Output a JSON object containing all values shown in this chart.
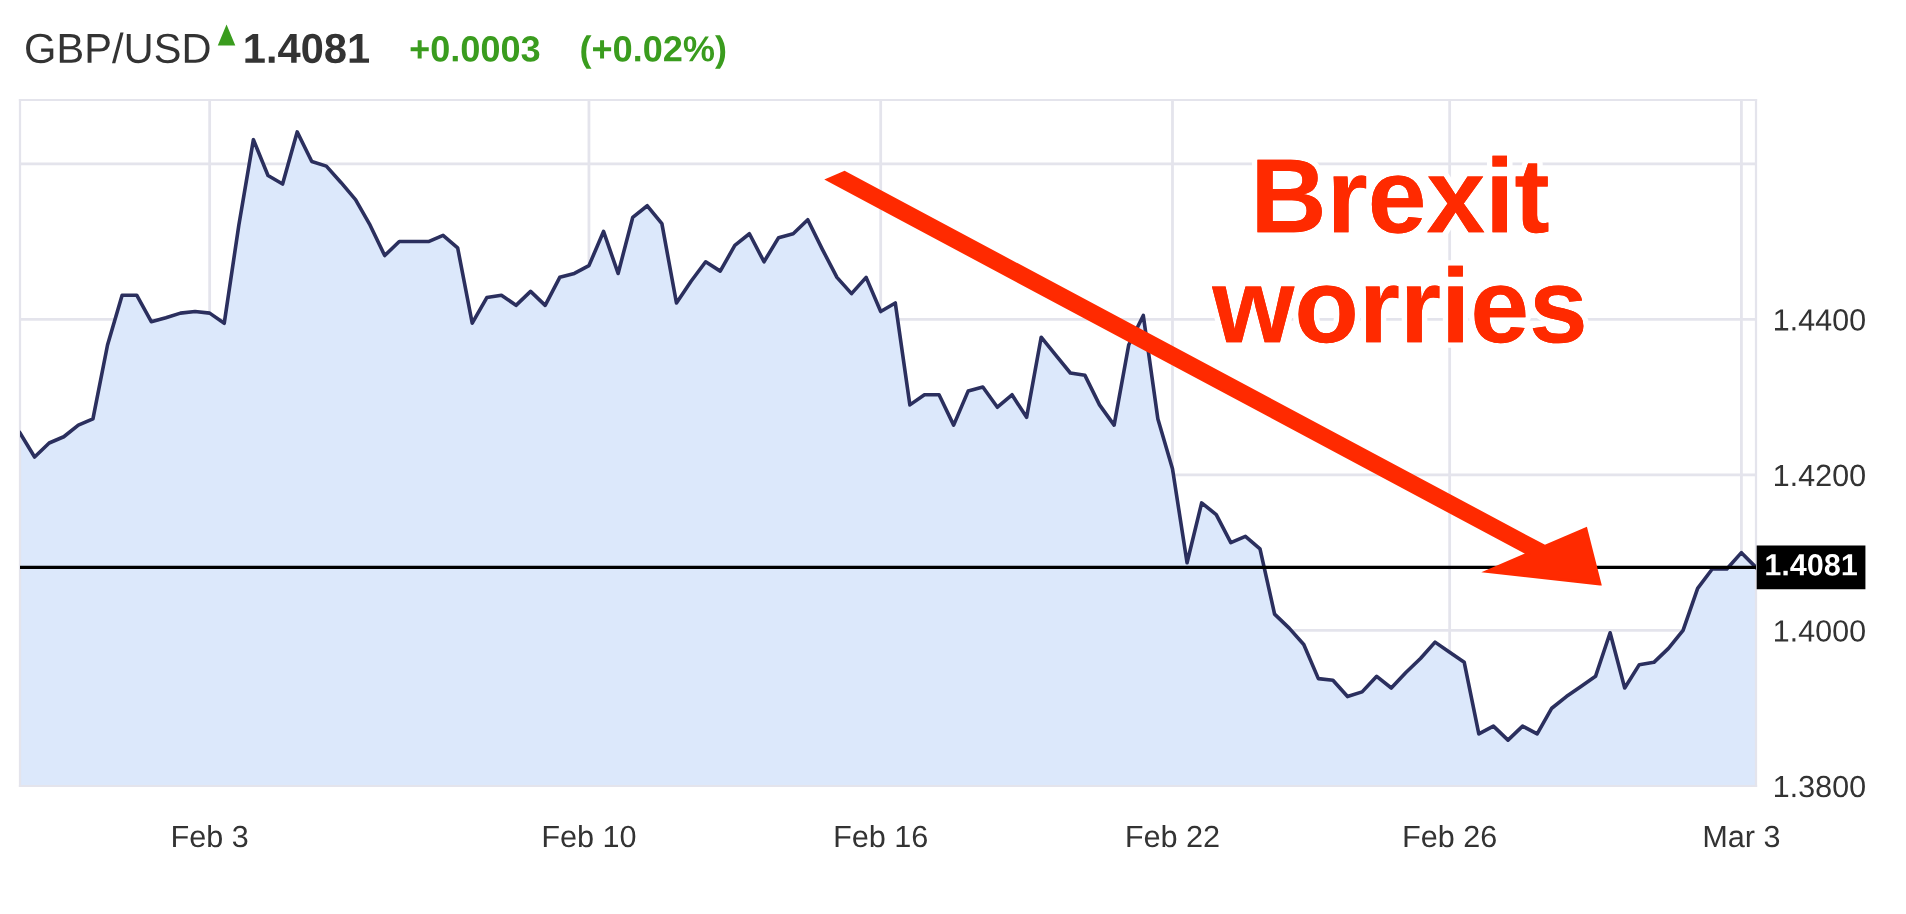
{
  "chart_data": {
    "type": "area",
    "title": "GBP/USD",
    "subtitle": "1.4081",
    "annotations": [
      "+0.0003",
      "(+0.02%)",
      "Brexit worries"
    ],
    "categories": [
      null,
      null,
      null,
      null,
      null,
      null,
      null,
      null,
      null,
      null,
      null,
      null,
      null,
      "Feb 3",
      null,
      null,
      null,
      null,
      null,
      null,
      null,
      null,
      null,
      null,
      null,
      null,
      null,
      null,
      null,
      null,
      null,
      null,
      null,
      null,
      null,
      null,
      null,
      null,
      null,
      "Feb 10",
      null,
      null,
      null,
      null,
      null,
      null,
      null,
      null,
      null,
      null,
      null,
      null,
      null,
      null,
      null,
      null,
      null,
      null,
      null,
      "Feb 16",
      null,
      null,
      null,
      null,
      null,
      null,
      null,
      null,
      null,
      null,
      null,
      null,
      null,
      null,
      null,
      null,
      null,
      null,
      null,
      "Feb 22",
      null,
      null,
      null,
      null,
      null,
      null,
      null,
      null,
      null,
      null,
      null,
      null,
      null,
      null,
      null,
      null,
      null,
      null,
      "Feb 26",
      null,
      null,
      null,
      null,
      null,
      null,
      null,
      null,
      null,
      null,
      null,
      null,
      null,
      null,
      null,
      null,
      null,
      null,
      null,
      "Mar 3",
      null
    ],
    "series": [
      {
        "color": "#2b2f5e",
        "values": [
          1.4254,
          1.4223,
          1.4241,
          1.4249,
          1.4264,
          1.4272,
          1.4367,
          1.4431,
          1.4431,
          1.4397,
          1.4402,
          1.4408,
          1.441,
          1.4408,
          1.4395,
          1.4521,
          1.4631,
          1.4585,
          1.4574,
          1.4641,
          1.4603,
          1.4597,
          1.4576,
          1.4554,
          1.4521,
          1.4482,
          1.45,
          1.45,
          1.45,
          1.4508,
          1.4492,
          1.4395,
          1.4428,
          1.4431,
          1.4418,
          1.4436,
          1.4418,
          1.4454,
          1.4459,
          1.4469,
          1.4513,
          1.4459,
          1.4531,
          1.4546,
          1.4523,
          1.4421,
          1.4449,
          1.4474,
          1.4462,
          1.4495,
          1.451,
          1.4474,
          1.4505,
          1.451,
          1.4528,
          1.449,
          1.4454,
          1.4433,
          1.4454,
          1.441,
          1.4421,
          1.429,
          1.4303,
          1.4303,
          1.4264,
          1.4308,
          1.4313,
          1.4287,
          1.4303,
          1.4274,
          1.4377,
          1.4354,
          1.4331,
          1.4328,
          1.429,
          1.4264,
          1.4367,
          1.4405,
          1.4272,
          1.4208,
          1.4087,
          1.4164,
          1.4149,
          1.4113,
          1.4121,
          1.4105,
          1.4021,
          1.4003,
          1.3982,
          1.3938,
          1.3936,
          1.3915,
          1.3921,
          1.3941,
          1.3926,
          1.3946,
          1.3964,
          1.3985,
          1.3972,
          1.3959,
          1.3867,
          1.3877,
          1.3859,
          1.3877,
          1.3867,
          1.39,
          1.3915,
          1.3928,
          1.3941,
          1.3997,
          1.3926,
          1.3956,
          1.3959,
          1.3977,
          1.4,
          1.4054,
          1.4079,
          1.4079,
          1.41,
          1.4081
        ]
      }
    ],
    "ylim": [
      1.38,
      1.4682
    ],
    "yticks": [
      {
        "value": 1.38,
        "label": "1.3800"
      },
      {
        "value": 1.4,
        "label": "1.4000"
      },
      {
        "value": 1.42,
        "label": "1.4200"
      },
      {
        "value": 1.44,
        "label": "1.4400"
      },
      {
        "value": 1.46,
        "label": null
      }
    ],
    "ref_lines": [
      {
        "axis": "y",
        "value": 1.4081,
        "label": "1.4081",
        "color": "#000000"
      }
    ],
    "grid": true,
    "legend": false,
    "marker": "none",
    "line_style": "solid"
  }
}
